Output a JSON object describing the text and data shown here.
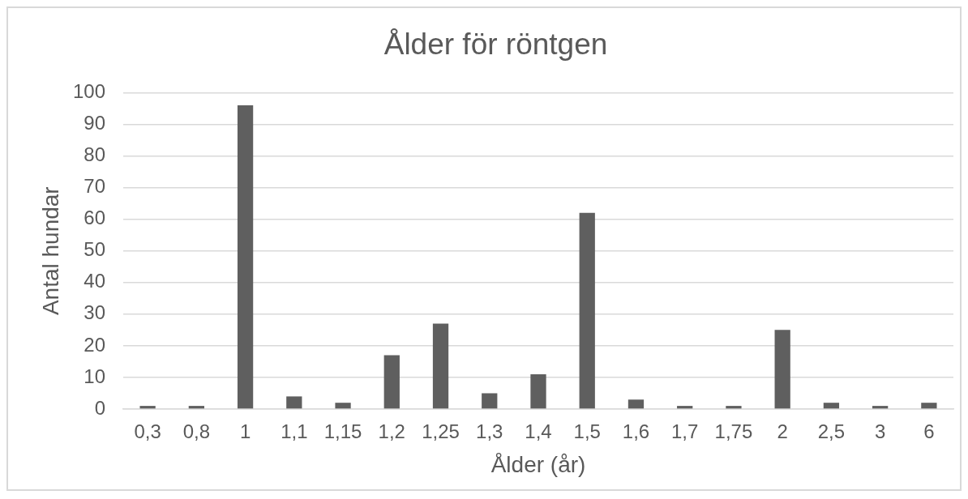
{
  "chart_data": {
    "type": "bar",
    "title": "Ålder för röntgen",
    "xlabel": "Ålder (år)",
    "ylabel": "Antal hundar",
    "categories": [
      "0,3",
      "0,8",
      "1",
      "1,1",
      "1,15",
      "1,2",
      "1,25",
      "1,3",
      "1,4",
      "1,5",
      "1,6",
      "1,7",
      "1,75",
      "2",
      "2,5",
      "3",
      "6"
    ],
    "values": [
      1,
      1,
      96,
      4,
      2,
      17,
      27,
      5,
      11,
      62,
      3,
      1,
      1,
      25,
      2,
      1,
      2
    ],
    "color": "#5f5f5f",
    "ylim": [
      0,
      100
    ],
    "yticks": [
      0,
      10,
      20,
      30,
      40,
      50,
      60,
      70,
      80,
      90,
      100
    ],
    "grid": "y"
  }
}
